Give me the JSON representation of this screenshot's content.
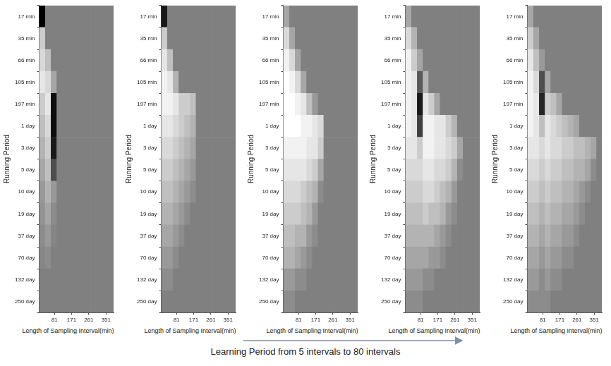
{
  "chart_data": [
    {
      "type": "heatmap",
      "x_label": "Length of Sampling Interval(min)",
      "y_label": "Running Period",
      "x_bins": [
        1,
        31,
        61,
        91,
        121,
        151,
        181,
        211,
        241,
        271,
        301,
        331,
        361,
        391
      ],
      "y_categories": [
        "17 min",
        "35 min",
        "66 min",
        "105 min",
        "197 min",
        "1 day",
        "3 day",
        "5 day",
        "10 day",
        "19 day",
        "37 day",
        "70 day",
        "132 day",
        "250 day"
      ],
      "xlim": [
        1,
        391
      ],
      "xticks": [
        81,
        171,
        261,
        351
      ],
      "zlim": [
        -1,
        1
      ],
      "grid": false,
      "cells": [
        [
          -1,
          0,
          0,
          0,
          0,
          0,
          0,
          0,
          0,
          0,
          0,
          0,
          0
        ],
        [
          0.6,
          0,
          0,
          0,
          0,
          0,
          0,
          0,
          0,
          0,
          0,
          0,
          0
        ],
        [
          0.7,
          0.5,
          0,
          0,
          0,
          0,
          0,
          0,
          0,
          0,
          0,
          0,
          0
        ],
        [
          0.8,
          0.7,
          0.3,
          0,
          0,
          0,
          0,
          0,
          0,
          0,
          0,
          0,
          0
        ],
        [
          0.6,
          0.8,
          -0.9,
          0,
          0,
          0,
          0,
          0,
          0,
          0,
          0,
          0,
          0
        ],
        [
          0.5,
          0.7,
          -0.9,
          0,
          0,
          0,
          0,
          0,
          0,
          0,
          0,
          0,
          0
        ],
        [
          0.4,
          0.6,
          -0.8,
          0,
          0,
          0,
          0,
          0,
          0,
          0,
          0,
          0,
          0
        ],
        [
          0.3,
          0.5,
          -0.4,
          0,
          0,
          0,
          0,
          0,
          0,
          0,
          0,
          0,
          0
        ],
        [
          0.2,
          0.4,
          0.2,
          0,
          0,
          0,
          0,
          0,
          0,
          0,
          0,
          0,
          0
        ],
        [
          0.15,
          0.3,
          0.1,
          0,
          0,
          0,
          0,
          0,
          0,
          0,
          0,
          0,
          0
        ],
        [
          0.1,
          0.2,
          0.05,
          0,
          0,
          0,
          0,
          0,
          0,
          0,
          0,
          0,
          0
        ],
        [
          0.05,
          0.1,
          0,
          0,
          0,
          0,
          0,
          0,
          0,
          0,
          0,
          0,
          0
        ],
        [
          0,
          0,
          0,
          0,
          0,
          0,
          0,
          0,
          0,
          0,
          0,
          0,
          0
        ],
        [
          0,
          0,
          0,
          0,
          0,
          0,
          0,
          0,
          0,
          0,
          0,
          0,
          0
        ]
      ]
    },
    {
      "type": "heatmap",
      "x_label": "Length of Sampling Interval(min)",
      "y_label": "Running Period",
      "x_bins": [
        1,
        31,
        61,
        91,
        121,
        151,
        181,
        211,
        241,
        271,
        301,
        331,
        361,
        391
      ],
      "y_categories": [
        "17 min",
        "35 min",
        "66 min",
        "105 min",
        "197 min",
        "1 day",
        "3 day",
        "5 day",
        "10 day",
        "19 day",
        "37 day",
        "70 day",
        "132 day",
        "250 day"
      ],
      "xlim": [
        1,
        391
      ],
      "xticks": [
        81,
        171,
        261,
        351
      ],
      "zlim": [
        -1,
        1
      ],
      "grid": false,
      "cells": [
        [
          -0.8,
          0,
          0,
          0,
          0,
          0,
          0,
          0,
          0,
          0,
          0,
          0,
          0
        ],
        [
          0.6,
          0,
          0,
          0,
          0,
          0,
          0,
          0,
          0,
          0,
          0,
          0,
          0
        ],
        [
          0.8,
          0.5,
          0,
          0,
          0,
          0,
          0,
          0,
          0,
          0,
          0,
          0,
          0
        ],
        [
          0.9,
          0.8,
          0.4,
          0,
          0,
          0,
          0,
          0,
          0,
          0,
          0,
          0,
          0
        ],
        [
          0.9,
          0.9,
          0.8,
          0.6,
          0.6,
          0.5,
          0,
          0,
          0,
          0,
          0,
          0,
          0
        ],
        [
          0.8,
          0.8,
          0.7,
          0.6,
          0.5,
          0.4,
          0,
          0,
          0,
          0,
          0,
          0,
          0
        ],
        [
          0.7,
          0.7,
          0.6,
          0.5,
          0.4,
          0.3,
          0,
          0,
          0,
          0,
          0,
          0,
          0
        ],
        [
          0.6,
          0.6,
          0.5,
          0.4,
          0.3,
          0.2,
          0,
          0,
          0,
          0,
          0,
          0,
          0
        ],
        [
          0.5,
          0.5,
          0.4,
          0.3,
          0.2,
          0.1,
          0,
          0,
          0,
          0,
          0,
          0,
          0
        ],
        [
          0.4,
          0.4,
          0.3,
          0.2,
          0.1,
          0,
          0,
          0,
          0,
          0,
          0,
          0,
          0
        ],
        [
          0.3,
          0.3,
          0.2,
          0.1,
          0,
          0,
          0,
          0,
          0,
          0,
          0,
          0,
          0
        ],
        [
          0.2,
          0.2,
          0.1,
          0,
          0,
          0,
          0,
          0,
          0,
          0,
          0,
          0,
          0
        ],
        [
          0.1,
          0.1,
          0,
          0,
          0,
          0,
          0,
          0,
          0,
          0,
          0,
          0,
          0
        ],
        [
          0,
          0,
          0,
          0,
          0,
          0,
          0,
          0,
          0,
          0,
          0,
          0,
          0
        ]
      ]
    },
    {
      "type": "heatmap",
      "x_label": "Length of Sampling Interval(min)",
      "y_label": "Running Period",
      "x_bins": [
        1,
        31,
        61,
        91,
        121,
        151,
        181,
        211,
        241,
        271,
        301,
        331,
        361,
        391
      ],
      "y_categories": [
        "17 min",
        "35 min",
        "66 min",
        "105 min",
        "197 min",
        "1 day",
        "3 day",
        "5 day",
        "10 day",
        "19 day",
        "37 day",
        "70 day",
        "132 day",
        "250 day"
      ],
      "xlim": [
        1,
        391
      ],
      "xticks": [
        81,
        171,
        261,
        351
      ],
      "zlim": [
        -1,
        1
      ],
      "grid": false,
      "cells": [
        [
          0.3,
          0,
          0,
          0,
          0,
          0,
          0,
          0,
          0,
          0,
          0,
          0,
          0
        ],
        [
          0.7,
          0.3,
          0,
          0,
          0,
          0,
          0,
          0,
          0,
          0,
          0,
          0,
          0
        ],
        [
          0.9,
          0.7,
          0.3,
          0,
          0,
          0,
          0,
          0,
          0,
          0,
          0,
          0,
          0
        ],
        [
          1,
          0.9,
          0.7,
          0.3,
          0,
          0,
          0,
          0,
          0,
          0,
          0,
          0,
          0
        ],
        [
          1,
          1,
          0.9,
          0.8,
          0.5,
          0.2,
          0,
          0,
          0,
          0,
          0,
          0,
          0
        ],
        [
          1,
          1,
          1,
          0.9,
          0.9,
          0.8,
          0.7,
          0,
          0,
          0,
          0,
          0,
          0
        ],
        [
          0.9,
          0.9,
          0.9,
          0.9,
          0.8,
          0.8,
          0.6,
          0,
          0,
          0,
          0,
          0,
          0
        ],
        [
          0.8,
          0.8,
          0.8,
          0.8,
          0.7,
          0.6,
          0.3,
          0,
          0,
          0,
          0,
          0,
          0
        ],
        [
          0.7,
          0.7,
          0.7,
          0.6,
          0.5,
          0.4,
          0.1,
          0,
          0,
          0,
          0,
          0,
          0
        ],
        [
          0.6,
          0.6,
          0.6,
          0.5,
          0.4,
          0.2,
          0,
          0,
          0,
          0,
          0,
          0,
          0
        ],
        [
          0.5,
          0.5,
          0.4,
          0.4,
          0.2,
          0.1,
          0,
          0,
          0,
          0,
          0,
          0,
          0
        ],
        [
          0.4,
          0.4,
          0.3,
          0.2,
          0.1,
          0,
          0,
          0,
          0,
          0,
          0,
          0,
          0
        ],
        [
          0.2,
          0.2,
          0.1,
          0.1,
          0,
          0,
          0,
          0,
          0,
          0,
          0,
          0,
          0
        ],
        [
          0.1,
          0.1,
          0,
          0,
          0,
          0,
          0,
          0,
          0,
          0,
          0,
          0,
          0
        ]
      ]
    },
    {
      "type": "heatmap",
      "x_label": "Length of Sampling Interval(min)",
      "y_label": "Running Period",
      "x_bins": [
        1,
        31,
        61,
        91,
        121,
        151,
        181,
        211,
        241,
        271,
        301,
        331,
        361,
        391
      ],
      "y_categories": [
        "17 min",
        "35 min",
        "66 min",
        "105 min",
        "197 min",
        "1 day",
        "3 day",
        "5 day",
        "10 day",
        "19 day",
        "37 day",
        "70 day",
        "132 day",
        "250 day"
      ],
      "xlim": [
        1,
        391
      ],
      "xticks": [
        81,
        171,
        261,
        351
      ],
      "zlim": [
        -1,
        1
      ],
      "grid": false,
      "cells": [
        [
          0.3,
          0,
          0,
          0,
          0,
          0,
          0,
          0,
          0,
          0,
          0,
          0,
          0
        ],
        [
          0.7,
          0.4,
          0,
          0,
          0,
          0,
          0,
          0,
          0,
          0,
          0,
          0,
          0
        ],
        [
          0.9,
          0.6,
          0.3,
          0,
          0,
          0,
          0,
          0,
          0,
          0,
          0,
          0,
          0
        ],
        [
          0.9,
          0.8,
          -0.3,
          0.4,
          0,
          0,
          0,
          0,
          0,
          0,
          0,
          0,
          0
        ],
        [
          0.9,
          0.8,
          -0.8,
          0.8,
          0.6,
          0.3,
          0,
          0,
          0,
          0,
          0,
          0,
          0
        ],
        [
          0.9,
          0.8,
          -0.5,
          0.9,
          0.9,
          0.8,
          0.8,
          0.6,
          0.4,
          0,
          0,
          0,
          0
        ],
        [
          0.8,
          0.8,
          0.6,
          0.9,
          0.9,
          0.8,
          0.8,
          0.7,
          0.6,
          0.3,
          0,
          0,
          0
        ],
        [
          0.7,
          0.7,
          0.7,
          0.8,
          0.8,
          0.7,
          0.7,
          0.6,
          0.4,
          0.1,
          0,
          0,
          0
        ],
        [
          0.6,
          0.6,
          0.6,
          0.7,
          0.7,
          0.6,
          0.5,
          0.4,
          0.2,
          0,
          0,
          0,
          0
        ],
        [
          0.5,
          0.5,
          0.5,
          0.6,
          0.5,
          0.5,
          0.4,
          0.2,
          0.1,
          0,
          0,
          0,
          0
        ],
        [
          0.4,
          0.4,
          0.4,
          0.4,
          0.4,
          0.3,
          0.2,
          0.1,
          0,
          0,
          0,
          0,
          0
        ],
        [
          0.3,
          0.3,
          0.3,
          0.3,
          0.2,
          0.2,
          0.1,
          0,
          0,
          0,
          0,
          0,
          0
        ],
        [
          0.2,
          0.2,
          0.2,
          0.1,
          0.1,
          0,
          0,
          0,
          0,
          0,
          0,
          0,
          0
        ],
        [
          0.1,
          0.1,
          0.1,
          0,
          0,
          0,
          0,
          0,
          0,
          0,
          0,
          0,
          0
        ]
      ]
    },
    {
      "type": "heatmap",
      "x_label": "Length of Sampling Interval(min)",
      "y_label": "Running Period",
      "x_bins": [
        1,
        31,
        61,
        91,
        121,
        151,
        181,
        211,
        241,
        271,
        301,
        331,
        361,
        391
      ],
      "y_categories": [
        "17 min",
        "35 min",
        "66 min",
        "105 min",
        "197 min",
        "1 day",
        "3 day",
        "5 day",
        "10 day",
        "19 day",
        "37 day",
        "70 day",
        "132 day",
        "250 day"
      ],
      "xlim": [
        1,
        391
      ],
      "xticks": [
        81,
        171,
        261,
        351
      ],
      "zlim": [
        -1,
        1
      ],
      "grid": false,
      "cells": [
        [
          0.3,
          0,
          0,
          0,
          0,
          0,
          0,
          0,
          0,
          0,
          0,
          0,
          0
        ],
        [
          0.6,
          0.3,
          0,
          0,
          0,
          0,
          0,
          0,
          0,
          0,
          0,
          0,
          0
        ],
        [
          0.8,
          0.5,
          0.2,
          0,
          0,
          0,
          0,
          0,
          0,
          0,
          0,
          0,
          0
        ],
        [
          0.9,
          0.7,
          -0.4,
          0.3,
          0,
          0,
          0,
          0,
          0,
          0,
          0,
          0,
          0
        ],
        [
          0.9,
          0.8,
          -0.7,
          0.6,
          0.5,
          0.3,
          0,
          0,
          0,
          0,
          0,
          0,
          0
        ],
        [
          0.9,
          0.8,
          0.5,
          0.8,
          0.7,
          0.6,
          0.5,
          0.4,
          0.3,
          0,
          0,
          0,
          0
        ],
        [
          0.8,
          0.8,
          0.7,
          0.8,
          0.7,
          0.7,
          0.6,
          0.6,
          0.5,
          0.5,
          0.4,
          0.3,
          0
        ],
        [
          0.7,
          0.7,
          0.6,
          0.7,
          0.6,
          0.6,
          0.5,
          0.5,
          0.4,
          0.4,
          0.3,
          0.1,
          0
        ],
        [
          0.6,
          0.6,
          0.5,
          0.6,
          0.5,
          0.5,
          0.4,
          0.4,
          0.3,
          0.2,
          0.1,
          0,
          0
        ],
        [
          0.5,
          0.5,
          0.4,
          0.5,
          0.4,
          0.4,
          0.3,
          0.3,
          0.2,
          0.1,
          0,
          0,
          0
        ],
        [
          0.4,
          0.4,
          0.3,
          0.4,
          0.3,
          0.3,
          0.2,
          0.2,
          0.1,
          0,
          0,
          0,
          0
        ],
        [
          0.3,
          0.3,
          0.2,
          0.3,
          0.2,
          0.2,
          0.1,
          0.1,
          0,
          0,
          0,
          0,
          0
        ],
        [
          0.2,
          0.2,
          0.1,
          0.2,
          0.1,
          0.1,
          0,
          0,
          0,
          0,
          0,
          0,
          0
        ],
        [
          0.1,
          0.1,
          0.1,
          0.1,
          0,
          0,
          0,
          0,
          0,
          0,
          0,
          0,
          0
        ]
      ]
    }
  ],
  "caption": "Learning Period from 5 intervals to 80 intervals"
}
